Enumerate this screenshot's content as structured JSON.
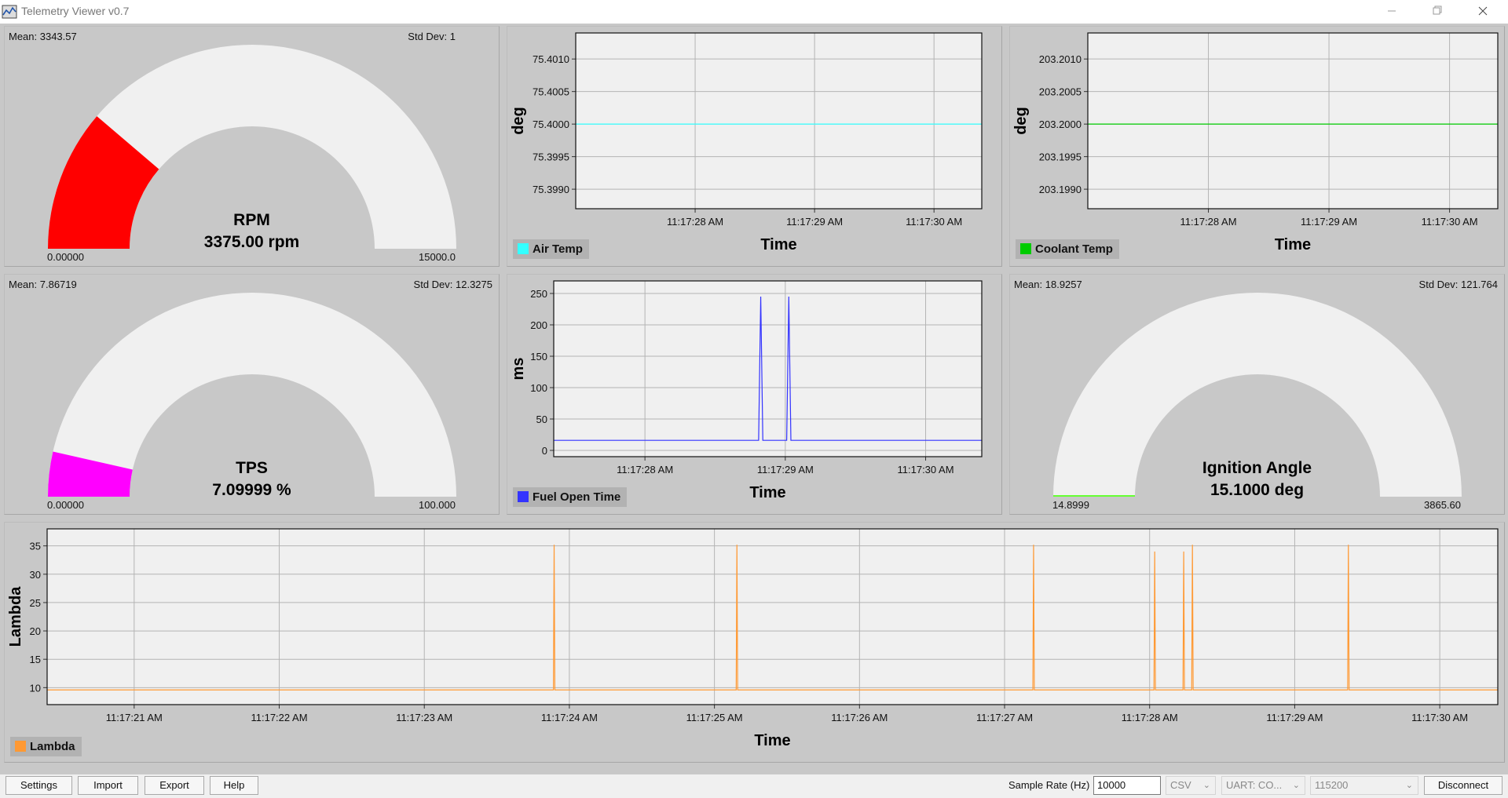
{
  "window": {
    "title": "Telemetry Viewer v0.7"
  },
  "gauges": {
    "rpm": {
      "mean": "Mean: 3343.57",
      "stddev": "Std Dev: 1",
      "title": "RPM",
      "value_text": "3375.00 rpm",
      "min": "0.00000",
      "max": "15000.0",
      "value": 3375,
      "range": [
        0,
        15000
      ],
      "color": "#ff0000"
    },
    "tps": {
      "mean": "Mean: 7.86719",
      "stddev": "Std Dev: 12.3275",
      "title": "TPS",
      "value_text": "7.09999 %",
      "min": "0.00000",
      "max": "100.000",
      "value": 7.09999,
      "range": [
        0,
        100
      ],
      "color": "#ff00ff"
    },
    "ignition": {
      "mean": "Mean: 18.9257",
      "stddev": "Std Dev: 121.764",
      "title": "Ignition Angle",
      "value_text": "15.1000 deg",
      "min": "14.8999",
      "max": "3865.60",
      "value": 15.1,
      "range": [
        14.8999,
        3865.6
      ],
      "color": "#66ff33"
    }
  },
  "charts": {
    "air_temp": {
      "legend": "Air Temp",
      "color": "#33ffff",
      "ylabel": "deg",
      "xlabel": "Time"
    },
    "coolant_temp": {
      "legend": "Coolant Temp",
      "color": "#00cc00",
      "ylabel": "deg",
      "xlabel": "Time"
    },
    "fuel_open_time": {
      "legend": "Fuel Open Time",
      "color": "#3333ff",
      "ylabel": "ms",
      "xlabel": "Time"
    },
    "lambda": {
      "legend": "Lambda",
      "color": "#ff9933",
      "ylabel": "Lambda",
      "xlabel": "Time"
    }
  },
  "chart_data": [
    {
      "id": "air_temp",
      "type": "line",
      "xlabel": "Time",
      "ylabel": "deg",
      "xlim": [
        "11:17:27.000",
        "11:17:30.400"
      ],
      "xticks": [
        "11:17:28 AM",
        "11:17:29 AM",
        "11:17:30 AM"
      ],
      "ylim": [
        75.3987,
        75.4014
      ],
      "yticks": [
        "75.4010",
        "75.4005",
        "75.4000",
        "75.3995",
        "75.3990"
      ],
      "grid": true,
      "series": [
        {
          "name": "Air Temp",
          "x": [
            "11:17:27.000",
            "11:17:30.400"
          ],
          "y": [
            75.4,
            75.4
          ]
        }
      ]
    },
    {
      "id": "coolant_temp",
      "type": "line",
      "xlabel": "Time",
      "ylabel": "deg",
      "xlim": [
        "11:17:27.000",
        "11:17:30.400"
      ],
      "xticks": [
        "11:17:28 AM",
        "11:17:29 AM",
        "11:17:30 AM"
      ],
      "ylim": [
        203.1987,
        203.2014
      ],
      "yticks": [
        "203.2010",
        "203.2005",
        "203.2000",
        "203.1995",
        "203.1990"
      ],
      "grid": true,
      "series": [
        {
          "name": "Coolant Temp",
          "x": [
            "11:17:27.000",
            "11:17:30.400"
          ],
          "y": [
            203.2,
            203.2
          ]
        }
      ]
    },
    {
      "id": "fuel_open_time",
      "type": "line",
      "xlabel": "Time",
      "ylabel": "ms",
      "xlim": [
        "11:17:27.350",
        "11:17:30.400"
      ],
      "xticks": [
        "11:17:28 AM",
        "11:17:29 AM",
        "11:17:30 AM"
      ],
      "ylim": [
        -10,
        270
      ],
      "yticks": [
        "250",
        "200",
        "150",
        "100",
        "50",
        "0"
      ],
      "grid": true,
      "series": [
        {
          "name": "Fuel Open Time",
          "x": [
            "11:17:27.350",
            "11:17:28.810",
            "11:17:28.825",
            "11:17:28.840",
            "11:17:29.010",
            "11:17:29.025",
            "11:17:29.040",
            "11:17:30.400"
          ],
          "y": [
            16,
            16,
            245,
            16,
            16,
            245,
            16,
            16
          ]
        }
      ]
    },
    {
      "id": "lambda",
      "type": "line",
      "xlabel": "Time",
      "ylabel": "Lambda",
      "xlim": [
        "11:17:20.400",
        "11:17:30.400"
      ],
      "xticks": [
        "11:17:21 AM",
        "11:17:22 AM",
        "11:17:23 AM",
        "11:17:24 AM",
        "11:17:25 AM",
        "11:17:26 AM",
        "11:17:27 AM",
        "11:17:28 AM",
        "11:17:29 AM",
        "11:17:30 AM"
      ],
      "ylim": [
        7,
        38
      ],
      "yticks": [
        "35",
        "30",
        "25",
        "20",
        "15",
        "10"
      ],
      "grid": true,
      "series": [
        {
          "name": "Lambda",
          "x": [
            "11:17:20.400",
            "11:17:23.890",
            "11:17:23.895",
            "11:17:23.900",
            "11:17:25.150",
            "11:17:25.155",
            "11:17:25.160",
            "11:17:27.195",
            "11:17:27.200",
            "11:17:27.205",
            "11:17:28.030",
            "11:17:28.035",
            "11:17:28.040",
            "11:17:28.230",
            "11:17:28.235",
            "11:17:28.240",
            "11:17:28.290",
            "11:17:28.295",
            "11:17:28.300",
            "11:17:29.365",
            "11:17:29.370",
            "11:17:29.375",
            "11:17:30.400"
          ],
          "y": [
            9.6,
            9.6,
            35.2,
            9.6,
            9.6,
            35.2,
            9.6,
            9.6,
            35.2,
            9.6,
            9.6,
            34,
            9.6,
            9.6,
            34,
            9.6,
            9.6,
            35.2,
            9.6,
            9.6,
            35.2,
            9.6,
            9.6
          ]
        }
      ]
    }
  ],
  "toolbar": {
    "settings": "Settings",
    "import": "Import",
    "export": "Export",
    "help": "Help",
    "sample_rate_label": "Sample Rate (Hz)",
    "sample_rate_value": "10000",
    "format": "CSV",
    "port": "UART: CO...",
    "baud": "115200",
    "disconnect": "Disconnect"
  }
}
